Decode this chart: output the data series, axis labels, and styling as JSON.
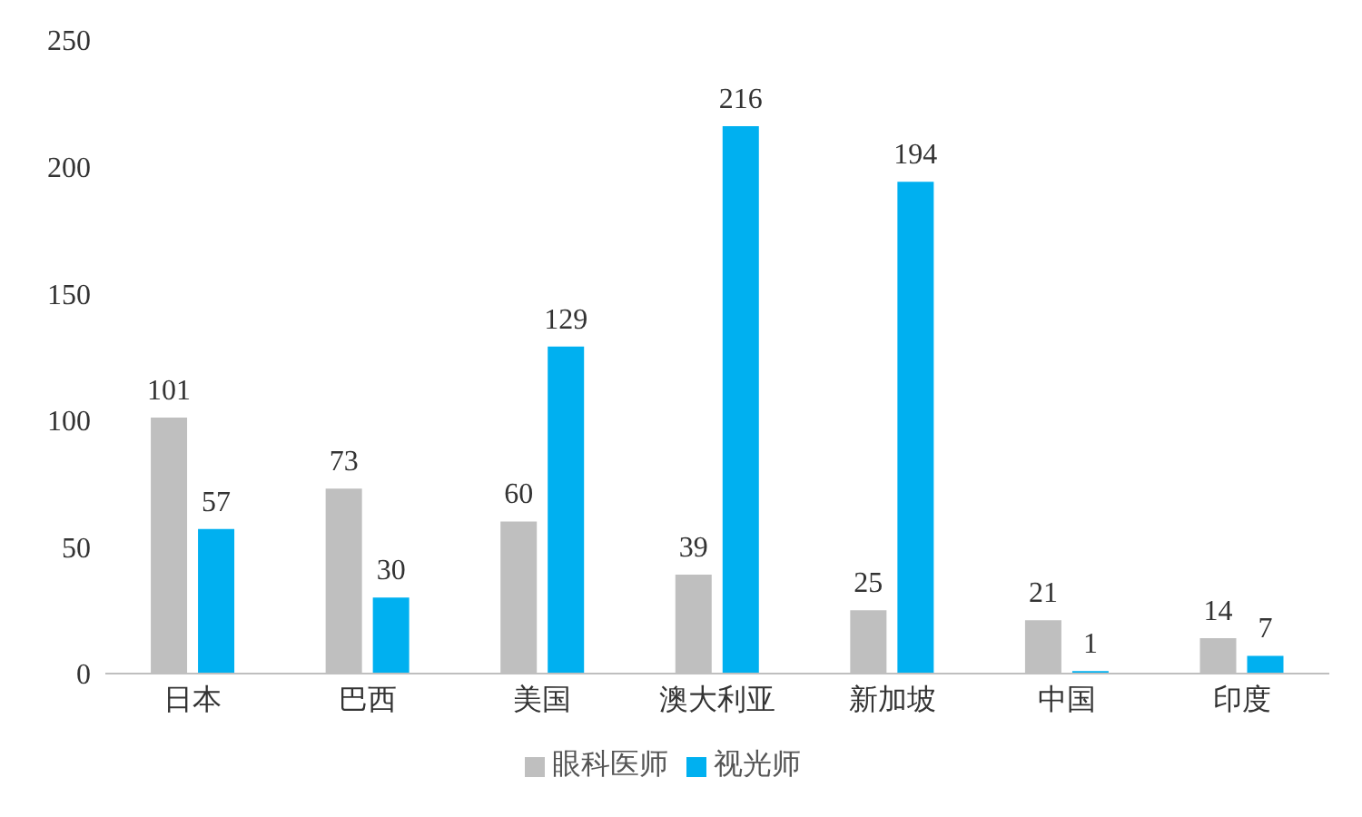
{
  "chart_data": {
    "type": "bar",
    "categories": [
      "日本",
      "巴西",
      "美国",
      "澳大利亚",
      "新加坡",
      "中国",
      "印度"
    ],
    "series": [
      {
        "name": "眼科医师",
        "color": "#bfbfbf",
        "values": [
          101,
          73,
          60,
          39,
          25,
          21,
          14
        ]
      },
      {
        "name": "视光师",
        "color": "#00b0f0",
        "values": [
          57,
          30,
          129,
          216,
          194,
          1,
          7
        ]
      }
    ],
    "ylim": [
      0,
      250
    ],
    "yticks": [
      0,
      50,
      100,
      150,
      200,
      250
    ],
    "grid": false,
    "legend": "bottom",
    "data_labels": true
  }
}
